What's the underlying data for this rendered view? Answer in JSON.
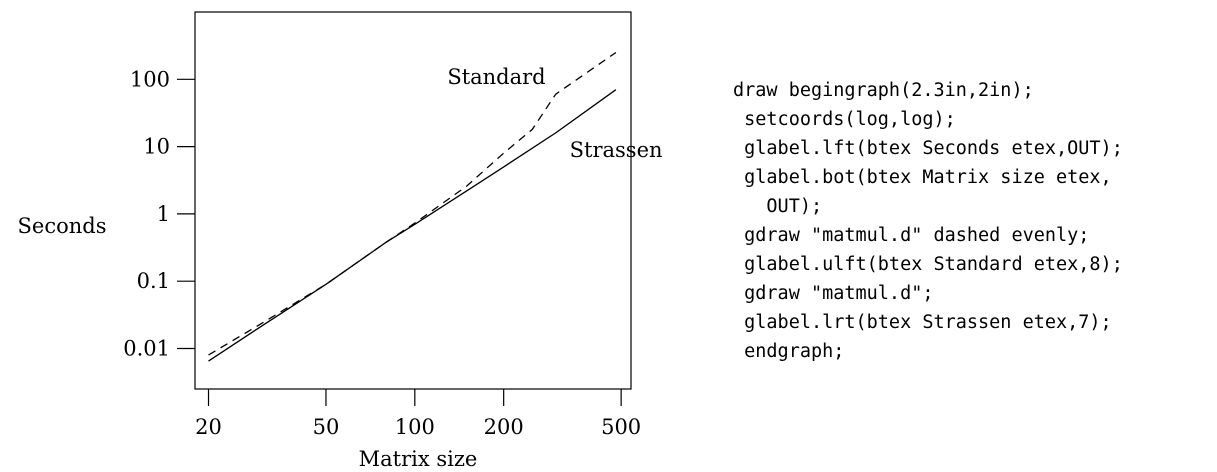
{
  "chart_data": {
    "type": "line",
    "x_scale": "log",
    "y_scale": "log",
    "xlabel": "Matrix size",
    "ylabel": "Seconds",
    "xlim": [
      18,
      540
    ],
    "ylim": [
      0.0025,
      1000
    ],
    "x_ticks": [
      20,
      50,
      100,
      200,
      500
    ],
    "x_tick_labels": [
      "20",
      "50",
      "100",
      "200",
      "500"
    ],
    "y_ticks": [
      0.01,
      0.1,
      1,
      10,
      100
    ],
    "y_tick_labels": [
      "0.01",
      "0.1",
      "1",
      "10",
      "100"
    ],
    "grid": false,
    "legend": "none",
    "series": [
      {
        "name": "Standard",
        "style": "dashed",
        "x": [
          20,
          30,
          50,
          80,
          100,
          150,
          200,
          250,
          300,
          480
        ],
        "y": [
          0.008,
          0.023,
          0.09,
          0.38,
          0.73,
          2.6,
          8,
          18,
          60,
          250
        ]
      },
      {
        "name": "Strassen",
        "style": "solid",
        "x": [
          20,
          30,
          50,
          80,
          100,
          150,
          200,
          300,
          480
        ],
        "y": [
          0.0065,
          0.021,
          0.09,
          0.38,
          0.7,
          2.2,
          5,
          16,
          70
        ]
      }
    ],
    "annotations": [
      {
        "text": "Standard",
        "series": 0
      },
      {
        "text": "Strassen",
        "series": 1
      }
    ]
  },
  "code": {
    "lines": [
      "draw begingraph(2.3in,2in);",
      " setcoords(log,log);",
      " glabel.lft(btex Seconds etex,OUT);",
      " glabel.bot(btex Matrix size etex,",
      "   OUT);",
      " gdraw \"matmul.d\" dashed evenly;",
      " glabel.ulft(btex Standard etex,8);",
      " gdraw \"matmul.d\";",
      " glabel.lrt(btex Strassen etex,7);",
      " endgraph;"
    ]
  }
}
